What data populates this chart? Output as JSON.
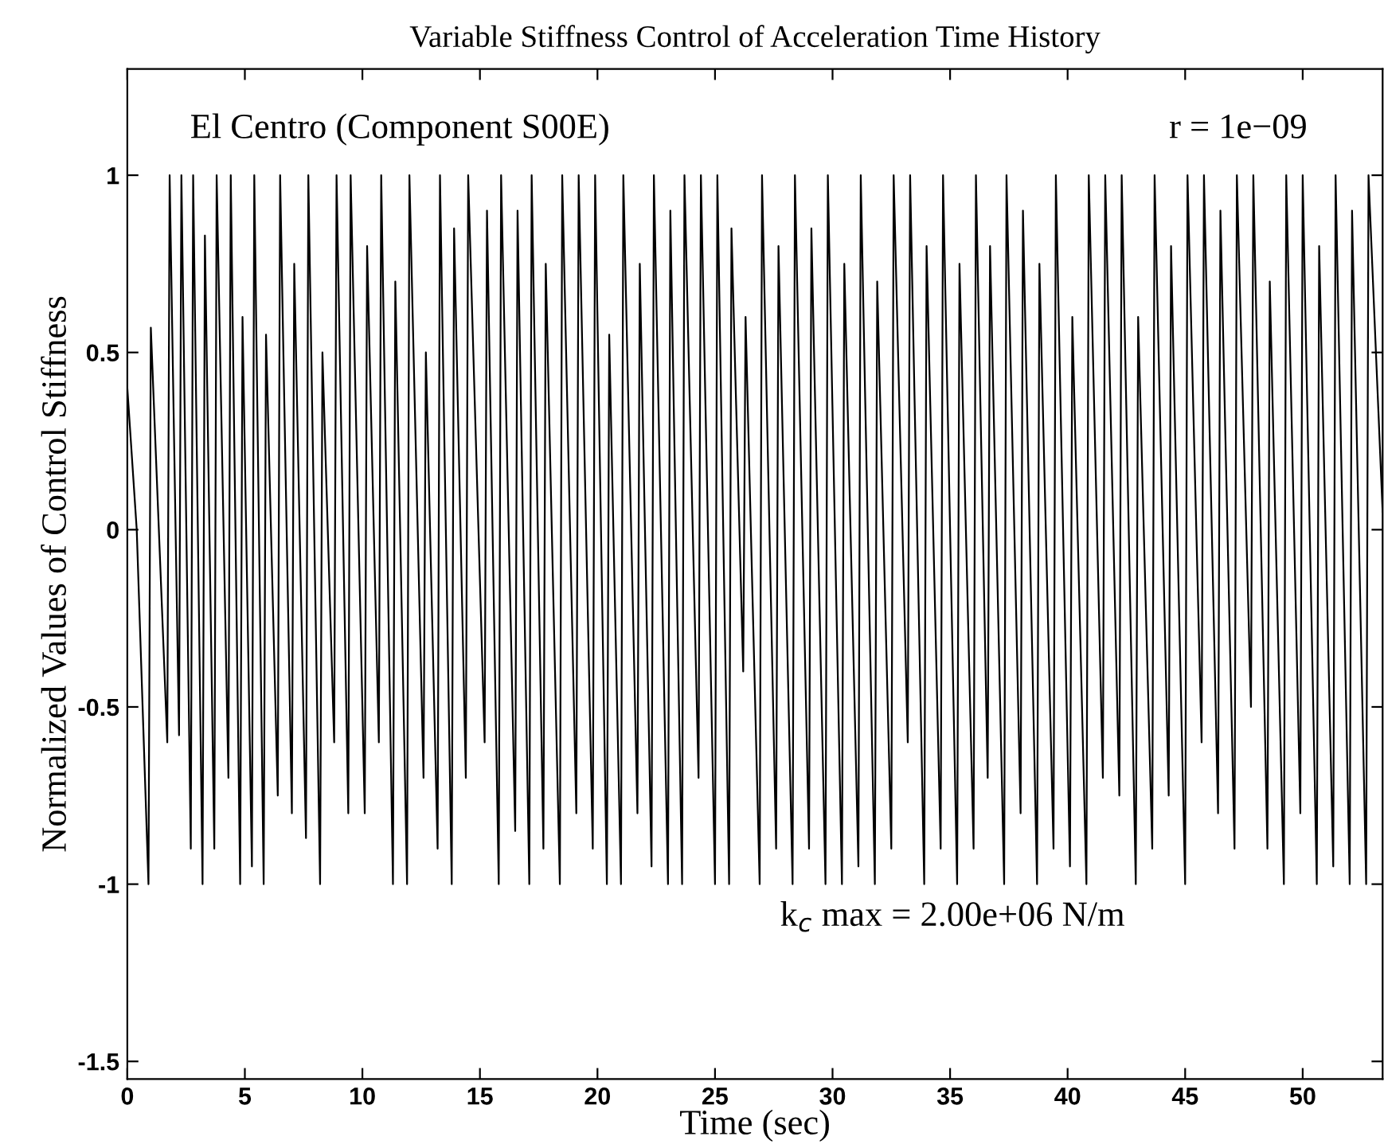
{
  "chart_data": {
    "type": "line",
    "title": "Variable Stiffness Control of Acceleration Time History",
    "xlabel": "Time (sec)",
    "ylabel": "Normalized Values of Control Stiffness",
    "annotations": [
      "El Centro (Component S00E)",
      "r = 1e−09",
      "k$_{c}$ max = 2.00e+06 N/m"
    ],
    "xlim": [
      0,
      53.4
    ],
    "ylim": [
      -1.55,
      1.3
    ],
    "xticks": [
      0,
      5,
      10,
      15,
      20,
      25,
      30,
      35,
      40,
      45,
      50
    ],
    "yticks": [
      -1.5,
      -1,
      -0.5,
      0,
      0.5,
      1
    ],
    "grid": false,
    "legend": false,
    "marker": "none",
    "line_style": "solid",
    "series": [
      {
        "color": "#000000",
        "x": [
          0,
          0.4,
          0.9,
          1.0,
          1.7,
          1.8,
          2.2,
          2.3,
          2.7,
          2.8,
          3.2,
          3.3,
          3.7,
          3.8,
          4.3,
          4.4,
          4.8,
          4.9,
          5.3,
          5.4,
          5.8,
          5.9,
          6.4,
          6.5,
          7.0,
          7.1,
          7.6,
          7.7,
          8.2,
          8.3,
          8.8,
          8.9,
          9.4,
          9.5,
          10.1,
          10.2,
          10.7,
          10.8,
          11.3,
          11.4,
          11.9,
          12.0,
          12.6,
          12.7,
          13.2,
          13.3,
          13.8,
          13.9,
          14.4,
          14.5,
          15.2,
          15.3,
          15.8,
          15.9,
          16.5,
          16.6,
          17.1,
          17.2,
          17.7,
          17.8,
          18.4,
          18.5,
          19.1,
          19.2,
          19.8,
          19.9,
          20.4,
          20.5,
          21.0,
          21.1,
          21.7,
          21.8,
          22.3,
          22.4,
          23.0,
          23.1,
          23.6,
          23.7,
          24.3,
          24.4,
          25.0,
          25.1,
          25.6,
          25.7,
          26.2,
          26.3,
          26.9,
          27.0,
          27.6,
          27.7,
          28.3,
          28.4,
          29.0,
          29.1,
          29.7,
          29.8,
          30.4,
          30.5,
          31.1,
          31.2,
          31.8,
          31.9,
          32.5,
          32.6,
          33.2,
          33.3,
          33.9,
          34.0,
          34.6,
          34.7,
          35.3,
          35.4,
          36.0,
          36.1,
          36.6,
          36.7,
          37.3,
          37.4,
          38.0,
          38.1,
          38.7,
          38.8,
          39.4,
          39.5,
          40.1,
          40.2,
          40.8,
          40.9,
          41.5,
          41.6,
          42.2,
          42.3,
          42.9,
          43.0,
          43.6,
          43.7,
          44.3,
          44.4,
          45.0,
          45.1,
          45.7,
          45.8,
          46.4,
          46.5,
          47.1,
          47.2,
          47.8,
          47.9,
          48.5,
          48.6,
          49.2,
          49.3,
          49.9,
          50.0,
          50.6,
          50.7,
          51.3,
          51.4,
          52.0,
          52.1,
          52.7,
          52.8,
          53.4
        ],
        "values": [
          0.4,
          0.0,
          -1,
          0.57,
          -0.6,
          1,
          -0.58,
          1,
          -0.9,
          1,
          -1,
          0.83,
          -0.9,
          1,
          -0.7,
          1,
          -1,
          0.6,
          -0.95,
          1,
          -1,
          0.55,
          -0.75,
          1,
          -0.8,
          0.75,
          -0.87,
          1,
          -1,
          0.5,
          -0.6,
          1,
          -0.8,
          1,
          -0.8,
          0.8,
          -0.6,
          1,
          -1,
          0.7,
          -1,
          1,
          -0.7,
          0.5,
          -0.9,
          1,
          -1,
          0.85,
          -0.7,
          1,
          -0.6,
          0.9,
          -1,
          1,
          -0.85,
          0.9,
          -1,
          1,
          -0.9,
          0.75,
          -1,
          1,
          -0.8,
          1,
          -0.9,
          1,
          -1,
          0.55,
          -1,
          1,
          -0.8,
          0.75,
          -0.95,
          1,
          -1,
          0.9,
          -1,
          1,
          -0.7,
          1,
          -1,
          1,
          -1,
          0.85,
          -0.4,
          0.6,
          -1,
          1,
          -0.9,
          0.8,
          -1,
          1,
          -0.9,
          0.85,
          -1,
          1,
          -1,
          0.75,
          -0.95,
          1,
          -1,
          0.7,
          -0.9,
          1,
          -0.6,
          1,
          -1,
          0.8,
          -0.9,
          1,
          -1,
          0.75,
          -0.9,
          1,
          -0.7,
          0.8,
          -1,
          1,
          -0.8,
          0.9,
          -1,
          0.75,
          -0.9,
          1,
          -0.95,
          0.6,
          -1,
          1,
          -0.7,
          1,
          -0.75,
          1,
          -1,
          0.6,
          -0.9,
          1,
          -0.75,
          0.8,
          -1,
          1,
          -0.6,
          1,
          -0.8,
          0.9,
          -0.9,
          1,
          -0.5,
          1,
          -0.9,
          0.7,
          -1,
          1,
          -0.8,
          1,
          -1,
          0.8,
          -0.95,
          1,
          -1,
          0.9,
          -1,
          1,
          0.05
        ]
      }
    ]
  }
}
